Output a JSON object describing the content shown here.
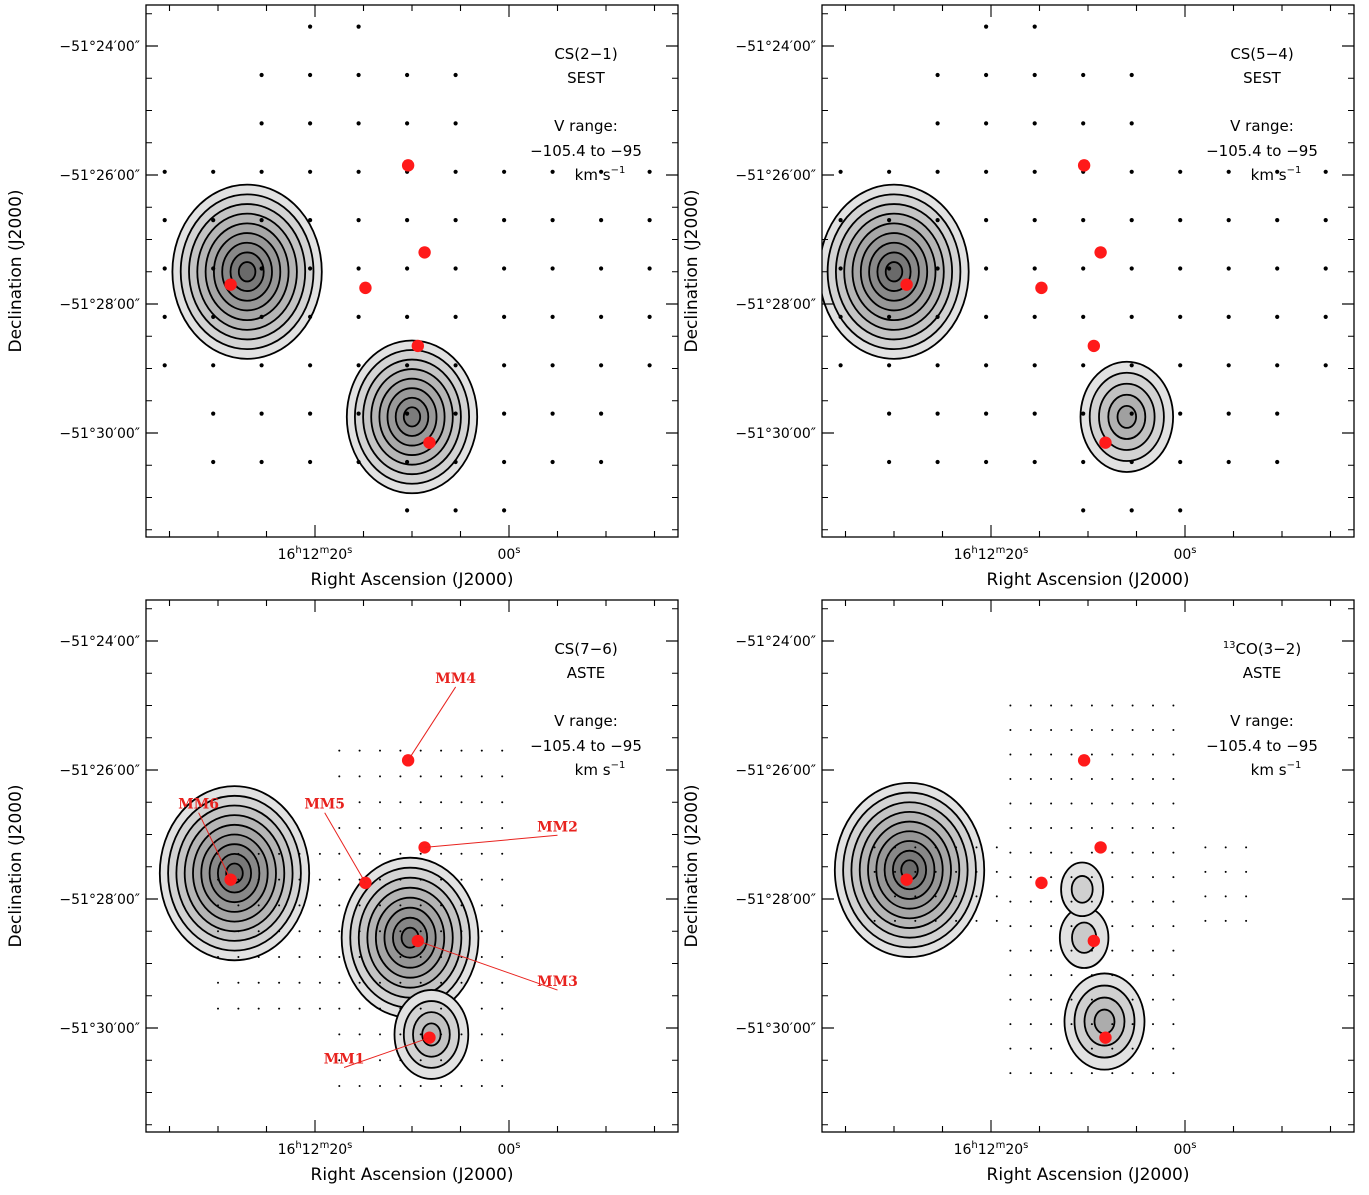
{
  "chart_data": [
    {
      "type": "contour",
      "panel": "top-left",
      "title": "CS(2−1)",
      "subtitle": "SEST",
      "note_lines": [
        "V range:",
        "−105.4 to −95"
      ],
      "unit_base": "km s",
      "unit_exp": "−1",
      "xlabel": "Right Ascension (J2000)",
      "ylabel": "Declination (J2000)",
      "x_ticks": [
        {
          "ra_s": 20,
          "h": "16",
          "m": "12",
          "s": "20"
        },
        {
          "ra_s": 0,
          "label": "00"
        }
      ],
      "y_ticks": [
        "−51°24′00″",
        "−51°26′00″",
        "−51°28′00″",
        "−51°30′00″"
      ],
      "sampling": "SEST",
      "peaks": [
        {
          "ra": 27.0,
          "dec": 27.5,
          "strength": 1.0
        },
        {
          "ra": 10.0,
          "dec": 29.75,
          "strength": 0.85
        }
      ]
    },
    {
      "type": "contour",
      "panel": "top-right",
      "title": "CS(5−4)",
      "subtitle": "SEST",
      "note_lines": [
        "V range:",
        "−105.4 to −95"
      ],
      "unit_base": "km s",
      "unit_exp": "−1",
      "xlabel": "Right Ascension (J2000)",
      "ylabel": "Declination (J2000)",
      "x_ticks": [
        {
          "ra_s": 20,
          "h": "16",
          "m": "12",
          "s": "20"
        },
        {
          "ra_s": 0,
          "label": "00"
        }
      ],
      "y_ticks": [
        "−51°24′00″",
        "−51°26′00″",
        "−51°28′00″",
        "−51°30′00″"
      ],
      "sampling": "SEST",
      "peaks": [
        {
          "ra": 30.0,
          "dec": 27.5,
          "strength": 1.0
        },
        {
          "ra": 6.0,
          "dec": 29.75,
          "strength": 0.55
        }
      ]
    },
    {
      "type": "contour",
      "panel": "bottom-left",
      "title": "CS(7−6)",
      "subtitle": "ASTE",
      "note_lines": [
        "V range:",
        "−105.4 to −95"
      ],
      "unit_base": "km s",
      "unit_exp": "−1",
      "xlabel": "Right Ascension (J2000)",
      "ylabel": "Declination (J2000)",
      "x_ticks": [
        {
          "ra_s": 20,
          "h": "16",
          "m": "12",
          "s": "20"
        },
        {
          "ra_s": 0,
          "label": "00"
        }
      ],
      "y_ticks": [
        "−51°24′00″",
        "−51°26′00″",
        "−51°28′00″",
        "−51°30′00″"
      ],
      "sampling": "ASTE-CS76",
      "peaks": [
        {
          "ra": 28.3,
          "dec": 27.6,
          "strength": 1.0
        },
        {
          "ra": 10.2,
          "dec": 28.6,
          "strength": 0.9
        },
        {
          "ra": 8.0,
          "dec": 30.1,
          "strength": 0.4
        }
      ],
      "source_labels": [
        {
          "name": "MM4",
          "source": "MM4",
          "text_ra": 5.5,
          "text_dec": 24.65
        },
        {
          "name": "MM2",
          "source": "MM2",
          "text_ra": -5.0,
          "text_dec": 26.95
        },
        {
          "name": "MM5",
          "source": "MM5",
          "text_ra": 19.0,
          "text_dec": 26.6
        },
        {
          "name": "MM6",
          "source": "MM6",
          "text_ra": 32.0,
          "text_dec": 26.6
        },
        {
          "name": "MM3",
          "source": "MM3",
          "text_ra": -5.0,
          "text_dec": 29.35
        },
        {
          "name": "MM1",
          "source": "MM1",
          "text_ra": 17.0,
          "text_dec": 30.55
        }
      ]
    },
    {
      "type": "contour",
      "panel": "bottom-right",
      "title_sup": "13",
      "title": "CO(3−2)",
      "subtitle": "ASTE",
      "note_lines": [
        "V range:",
        "−105.4 to −95"
      ],
      "unit_base": "km s",
      "unit_exp": "−1",
      "xlabel": "Right Ascension (J2000)",
      "ylabel": "Declination (J2000)",
      "x_ticks": [
        {
          "ra_s": 20,
          "h": "16",
          "m": "12",
          "s": "20"
        },
        {
          "ra_s": 0,
          "label": "00"
        }
      ],
      "y_ticks": [
        "−51°24′00″",
        "−51°26′00″",
        "−51°28′00″",
        "−51°30′00″"
      ],
      "sampling": "ASTE-13CO",
      "peaks": [
        {
          "ra": 28.4,
          "dec": 27.55,
          "strength": 1.0
        },
        {
          "ra": 8.3,
          "dec": 29.9,
          "strength": 0.45
        },
        {
          "ra": 10.4,
          "dec": 28.6,
          "strength": 0.2
        },
        {
          "ra": 10.6,
          "dec": 27.85,
          "strength": 0.15
        }
      ]
    }
  ],
  "sources": [
    {
      "name": "MM1",
      "ra": 8.2,
      "dec": 30.15
    },
    {
      "name": "MM2",
      "ra": 8.7,
      "dec": 27.2
    },
    {
      "name": "MM3",
      "ra": 9.4,
      "dec": 28.65
    },
    {
      "name": "MM4",
      "ra": 10.4,
      "dec": 25.85
    },
    {
      "name": "MM5",
      "ra": 14.8,
      "dec": 27.75
    },
    {
      "name": "MM6",
      "ra": 28.7,
      "dec": 27.7
    }
  ],
  "colors": {
    "source_marker": "#ff1a1a",
    "label": "#e8221e",
    "contour_line": "#000000",
    "fill_light": "#e2e2e2",
    "fill_dark": "#6a6a6a"
  }
}
